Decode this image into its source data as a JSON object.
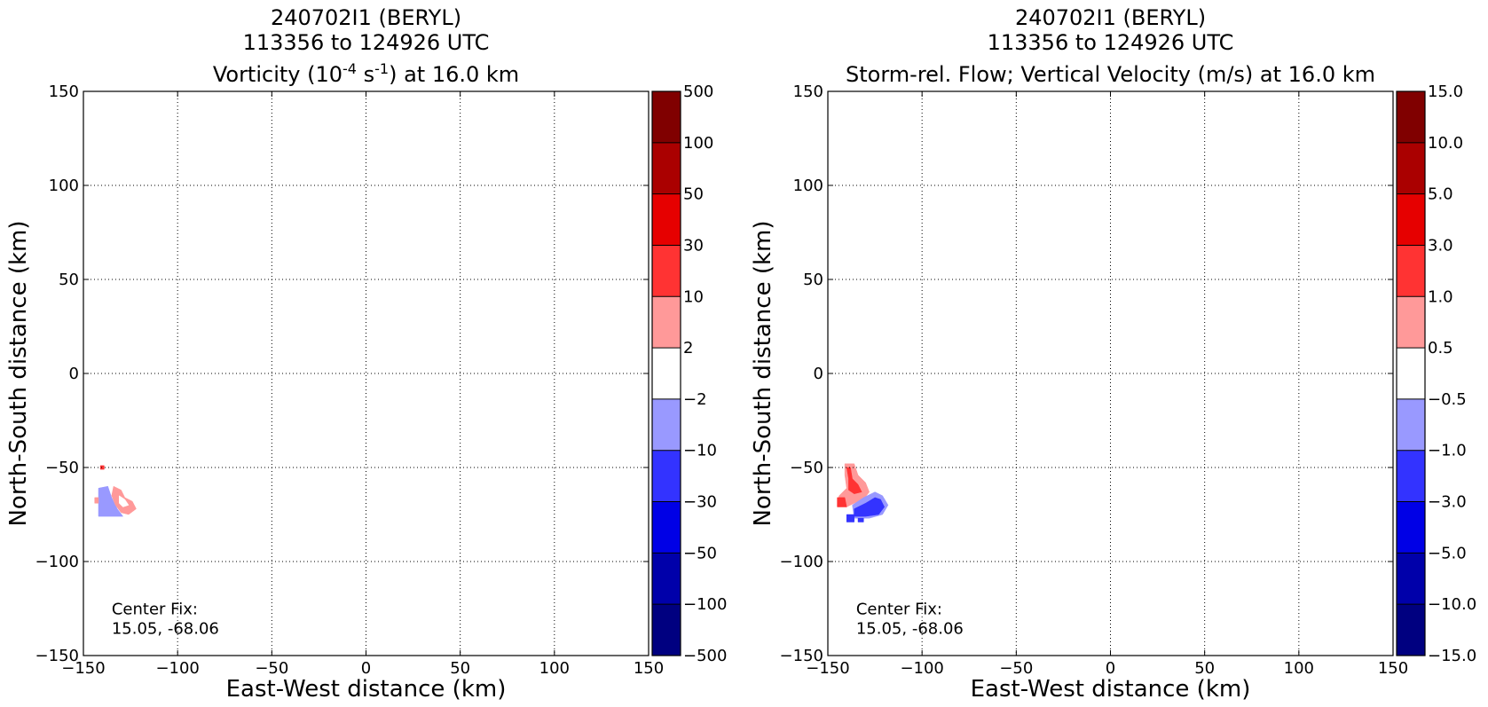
{
  "chart_data": [
    {
      "type": "heatmap",
      "title_lines": [
        "240702I1 (BERYL)",
        "113356 to 124926 UTC"
      ],
      "title_rich": [
        "Vorticity (10",
        "-4",
        " s",
        "-1",
        ") at 16.0 km"
      ],
      "xlabel": "East-West distance (km)",
      "ylabel": "North-South distance (km)",
      "xlim": [
        -150,
        150
      ],
      "ylim": [
        -150,
        150
      ],
      "xticks": [
        -150,
        -100,
        -50,
        0,
        50,
        100,
        150
      ],
      "yticks": [
        -150,
        -100,
        -50,
        0,
        50,
        100,
        150
      ],
      "xtick_labels": [
        "−150",
        "−100",
        "−50",
        "0",
        "50",
        "100",
        "150"
      ],
      "ytick_labels": [
        "−150",
        "−100",
        "−50",
        "0",
        "50",
        "100",
        "150"
      ],
      "grid": true,
      "annotation": {
        "lines": [
          "Center Fix:",
          "15.05, -68.06"
        ],
        "x": -135,
        "y": -128
      },
      "colorbar": {
        "levels": [
          -500,
          -100,
          -50,
          -30,
          -10,
          -2,
          2,
          10,
          30,
          50,
          100,
          500
        ],
        "labels": [
          "−500",
          "−100",
          "−50",
          "−30",
          "−10",
          "−2",
          "2",
          "10",
          "30",
          "50",
          "100",
          "500"
        ],
        "colors": [
          "#000080",
          "#0000aa",
          "#0000e6",
          "#3333ff",
          "#9999ff",
          "#ffffff",
          "#ff9999",
          "#ff3333",
          "#e60000",
          "#aa0000",
          "#800000"
        ]
      },
      "regions": [
        {
          "color": "#9999ff",
          "points": [
            [
              -142,
              -61
            ],
            [
              -137,
              -60
            ],
            [
              -135,
              -66
            ],
            [
              -132,
              -72
            ],
            [
              -129,
              -76
            ],
            [
              -142,
              -76
            ]
          ]
        },
        {
          "color": "#ff9999",
          "points": [
            [
              -134,
              -60
            ],
            [
              -130,
              -62
            ],
            [
              -128,
              -66
            ],
            [
              -124,
              -68
            ],
            [
              -122,
              -72
            ],
            [
              -126,
              -75
            ],
            [
              -130,
              -74
            ],
            [
              -133,
              -70
            ],
            [
              -135,
              -65
            ]
          ]
        },
        {
          "color": "#ffffff",
          "points": [
            [
              -131,
              -65
            ],
            [
              -128,
              -67
            ],
            [
              -126,
              -70
            ],
            [
              -129,
              -71
            ],
            [
              -131,
              -69
            ]
          ]
        },
        {
          "color": "#ff9999",
          "points": [
            [
              -144,
              -66
            ],
            [
              -142,
              -66
            ],
            [
              -142,
              -69
            ],
            [
              -144,
              -69
            ]
          ]
        },
        {
          "color": "#ff3333",
          "points": [
            [
              -141,
              -49
            ],
            [
              -139,
              -49
            ],
            [
              -139,
              -51
            ],
            [
              -141,
              -51
            ]
          ]
        }
      ]
    },
    {
      "type": "heatmap",
      "title_lines": [
        "240702I1 (BERYL)",
        "113356 to 124926 UTC"
      ],
      "title_rich": [
        "Storm-rel. Flow; Vertical Velocity (m/s) at 16.0 km"
      ],
      "xlabel": "East-West distance (km)",
      "ylabel": "North-South distance (km)",
      "xlim": [
        -150,
        150
      ],
      "ylim": [
        -150,
        150
      ],
      "xticks": [
        -150,
        -100,
        -50,
        0,
        50,
        100,
        150
      ],
      "yticks": [
        -150,
        -100,
        -50,
        0,
        50,
        100,
        150
      ],
      "xtick_labels": [
        "−150",
        "−100",
        "−50",
        "0",
        "50",
        "100",
        "150"
      ],
      "ytick_labels": [
        "−150",
        "−100",
        "−50",
        "0",
        "50",
        "100",
        "150"
      ],
      "grid": true,
      "annotation": {
        "lines": [
          "Center Fix:",
          "15.05, -68.06"
        ],
        "x": -135,
        "y": -128
      },
      "colorbar": {
        "levels": [
          -15.0,
          -10.0,
          -5.0,
          -3.0,
          -1.0,
          -0.5,
          0.5,
          1.0,
          3.0,
          5.0,
          10.0,
          15.0
        ],
        "labels": [
          "−15.0",
          "−10.0",
          "−5.0",
          "−3.0",
          "−1.0",
          "−0.5",
          "0.5",
          "1.0",
          "3.0",
          "5.0",
          "10.0",
          "15.0"
        ],
        "colors": [
          "#000080",
          "#0000aa",
          "#0000e6",
          "#3333ff",
          "#9999ff",
          "#ffffff",
          "#ff9999",
          "#ff3333",
          "#e60000",
          "#aa0000",
          "#800000"
        ]
      },
      "regions": [
        {
          "color": "#ff9999",
          "points": [
            [
              -141,
              -48
            ],
            [
              -136,
              -48
            ],
            [
              -134,
              -54
            ],
            [
              -130,
              -58
            ],
            [
              -128,
              -63
            ],
            [
              -131,
              -67
            ],
            [
              -136,
              -69
            ],
            [
              -140,
              -71
            ],
            [
              -145,
              -70
            ],
            [
              -144,
              -65
            ],
            [
              -140,
              -61
            ],
            [
              -141,
              -54
            ]
          ]
        },
        {
          "color": "#ff3333",
          "points": [
            [
              -140,
              -50
            ],
            [
              -138,
              -50
            ],
            [
              -137,
              -56
            ],
            [
              -134,
              -59
            ],
            [
              -132,
              -63
            ],
            [
              -136,
              -64
            ],
            [
              -139,
              -62
            ],
            [
              -139,
              -56
            ]
          ]
        },
        {
          "color": "#ff3333",
          "points": [
            [
              -145,
              -66
            ],
            [
              -141,
              -66
            ],
            [
              -140,
              -71
            ],
            [
              -145,
              -71
            ]
          ]
        },
        {
          "color": "#9999ff",
          "points": [
            [
              -137,
              -70
            ],
            [
              -131,
              -66
            ],
            [
              -125,
              -63
            ],
            [
              -121,
              -65
            ],
            [
              -118,
              -70
            ],
            [
              -121,
              -75
            ],
            [
              -128,
              -77
            ],
            [
              -136,
              -77
            ]
          ]
        },
        {
          "color": "#3333ff",
          "points": [
            [
              -136,
              -72
            ],
            [
              -130,
              -69
            ],
            [
              -125,
              -66
            ],
            [
              -122,
              -67
            ],
            [
              -120,
              -71
            ],
            [
              -123,
              -75
            ],
            [
              -130,
              -76
            ],
            [
              -136,
              -76
            ]
          ]
        },
        {
          "color": "#3333ff",
          "points": [
            [
              -140,
              -75
            ],
            [
              -136,
              -75
            ],
            [
              -136,
              -79
            ],
            [
              -140,
              -79
            ]
          ]
        },
        {
          "color": "#3333ff",
          "points": [
            [
              -134,
              -77
            ],
            [
              -131,
              -77
            ],
            [
              -131,
              -79
            ],
            [
              -134,
              -79
            ]
          ]
        }
      ]
    }
  ]
}
